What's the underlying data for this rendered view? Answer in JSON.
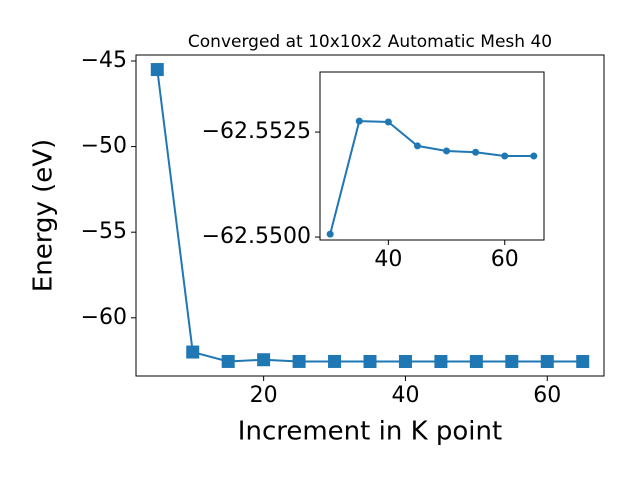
{
  "chart_data": [
    {
      "type": "line",
      "title": "Converged at 10x10x2 Automatic Mesh 40",
      "xlabel": "Increment in K point",
      "ylabel": "Energy (eV)",
      "marker": "square",
      "color": "#1f77b4",
      "x": [
        5,
        10,
        15,
        20,
        25,
        30,
        35,
        40,
        45,
        50,
        55,
        60,
        65
      ],
      "values": [
        -45.5,
        -62.0,
        -62.55,
        -62.45,
        -62.55,
        -62.55007,
        -62.55276,
        -62.55274,
        -62.55217,
        -62.55205,
        -62.55202,
        -62.55193,
        -62.55193
      ],
      "xlim": [
        2,
        68
      ],
      "ylim": [
        -63.4,
        -44.65
      ],
      "xticks": [
        20,
        40,
        60
      ],
      "yticks": [
        {
          "value": -45,
          "label": "−45"
        },
        {
          "value": -50,
          "label": "−50"
        },
        {
          "value": -55,
          "label": "−55"
        },
        {
          "value": -60,
          "label": "−60"
        }
      ]
    },
    {
      "type": "line",
      "marker": "circle",
      "color": "#1f77b4",
      "x": [
        30,
        35,
        40,
        45,
        50,
        55,
        60,
        65
      ],
      "values": [
        -62.55007,
        -62.55276,
        -62.55274,
        -62.55217,
        -62.55205,
        -62.55202,
        -62.55193,
        -62.55193
      ],
      "xlim": [
        28.25,
        66.75
      ],
      "ylim": [
        -62.54993,
        -62.55393
      ],
      "xticks": [
        40,
        60
      ],
      "yticks": [
        {
          "value": -62.5525,
          "label": "−62.5525"
        },
        {
          "value": -62.55,
          "label": "−62.5500"
        }
      ]
    }
  ]
}
